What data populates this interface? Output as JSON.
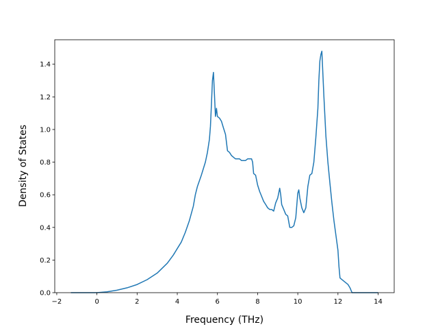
{
  "chart_data": {
    "type": "line",
    "title": "",
    "xlabel": "Frequency (THz)",
    "ylabel": "Density of States",
    "xlim": [
      -2.1,
      14.8
    ],
    "ylim": [
      0.0,
      1.55
    ],
    "xticks": [
      -2,
      0,
      2,
      4,
      6,
      8,
      10,
      12,
      14
    ],
    "xtick_labels": [
      "−2",
      "0",
      "2",
      "4",
      "6",
      "8",
      "10",
      "12",
      "14"
    ],
    "yticks": [
      0.0,
      0.2,
      0.4,
      0.6,
      0.8,
      1.0,
      1.2,
      1.4
    ],
    "ytick_labels": [
      "0.0",
      "0.2",
      "0.4",
      "0.6",
      "0.8",
      "1.0",
      "1.2",
      "1.4"
    ],
    "grid": false,
    "legend": "none",
    "series": [
      {
        "color": "#1f77b4",
        "x": [
          -1.3,
          0.0,
          0.5,
          1.0,
          1.5,
          2.0,
          2.5,
          3.0,
          3.5,
          3.8,
          4.0,
          4.2,
          4.4,
          4.6,
          4.8,
          4.9,
          5.0,
          5.2,
          5.4,
          5.5,
          5.6,
          5.65,
          5.7,
          5.75,
          5.8,
          5.85,
          5.9,
          5.95,
          6.0,
          6.1,
          6.2,
          6.3,
          6.4,
          6.5,
          6.6,
          6.7,
          6.8,
          6.9,
          7.0,
          7.1,
          7.2,
          7.3,
          7.4,
          7.5,
          7.6,
          7.7,
          7.75,
          7.8,
          7.9,
          8.0,
          8.1,
          8.2,
          8.3,
          8.4,
          8.5,
          8.6,
          8.7,
          8.8,
          8.9,
          9.0,
          9.1,
          9.15,
          9.2,
          9.3,
          9.4,
          9.5,
          9.6,
          9.7,
          9.8,
          9.9,
          10.0,
          10.05,
          10.1,
          10.2,
          10.3,
          10.4,
          10.5,
          10.6,
          10.7,
          10.8,
          10.9,
          11.0,
          11.05,
          11.1,
          11.15,
          11.2,
          11.3,
          11.4,
          11.5,
          11.6,
          11.7,
          11.8,
          11.9,
          12.0,
          12.05,
          12.1,
          12.3,
          12.5,
          12.6,
          12.7,
          13.0,
          14.0
        ],
        "y": [
          0.0,
          0.0,
          0.005,
          0.015,
          0.03,
          0.05,
          0.08,
          0.12,
          0.18,
          0.23,
          0.27,
          0.31,
          0.37,
          0.44,
          0.53,
          0.6,
          0.65,
          0.72,
          0.8,
          0.86,
          0.94,
          1.02,
          1.15,
          1.3,
          1.35,
          1.22,
          1.08,
          1.13,
          1.08,
          1.07,
          1.05,
          1.01,
          0.97,
          0.87,
          0.86,
          0.84,
          0.83,
          0.82,
          0.82,
          0.82,
          0.81,
          0.81,
          0.81,
          0.82,
          0.82,
          0.82,
          0.8,
          0.73,
          0.72,
          0.66,
          0.62,
          0.59,
          0.56,
          0.54,
          0.52,
          0.51,
          0.51,
          0.5,
          0.55,
          0.58,
          0.64,
          0.6,
          0.54,
          0.51,
          0.48,
          0.47,
          0.4,
          0.4,
          0.41,
          0.46,
          0.61,
          0.63,
          0.58,
          0.52,
          0.49,
          0.52,
          0.65,
          0.72,
          0.73,
          0.8,
          0.95,
          1.13,
          1.3,
          1.42,
          1.46,
          1.48,
          1.2,
          0.96,
          0.8,
          0.67,
          0.55,
          0.44,
          0.35,
          0.26,
          0.16,
          0.09,
          0.07,
          0.05,
          0.03,
          0.0,
          0.0,
          0.0
        ]
      }
    ]
  }
}
